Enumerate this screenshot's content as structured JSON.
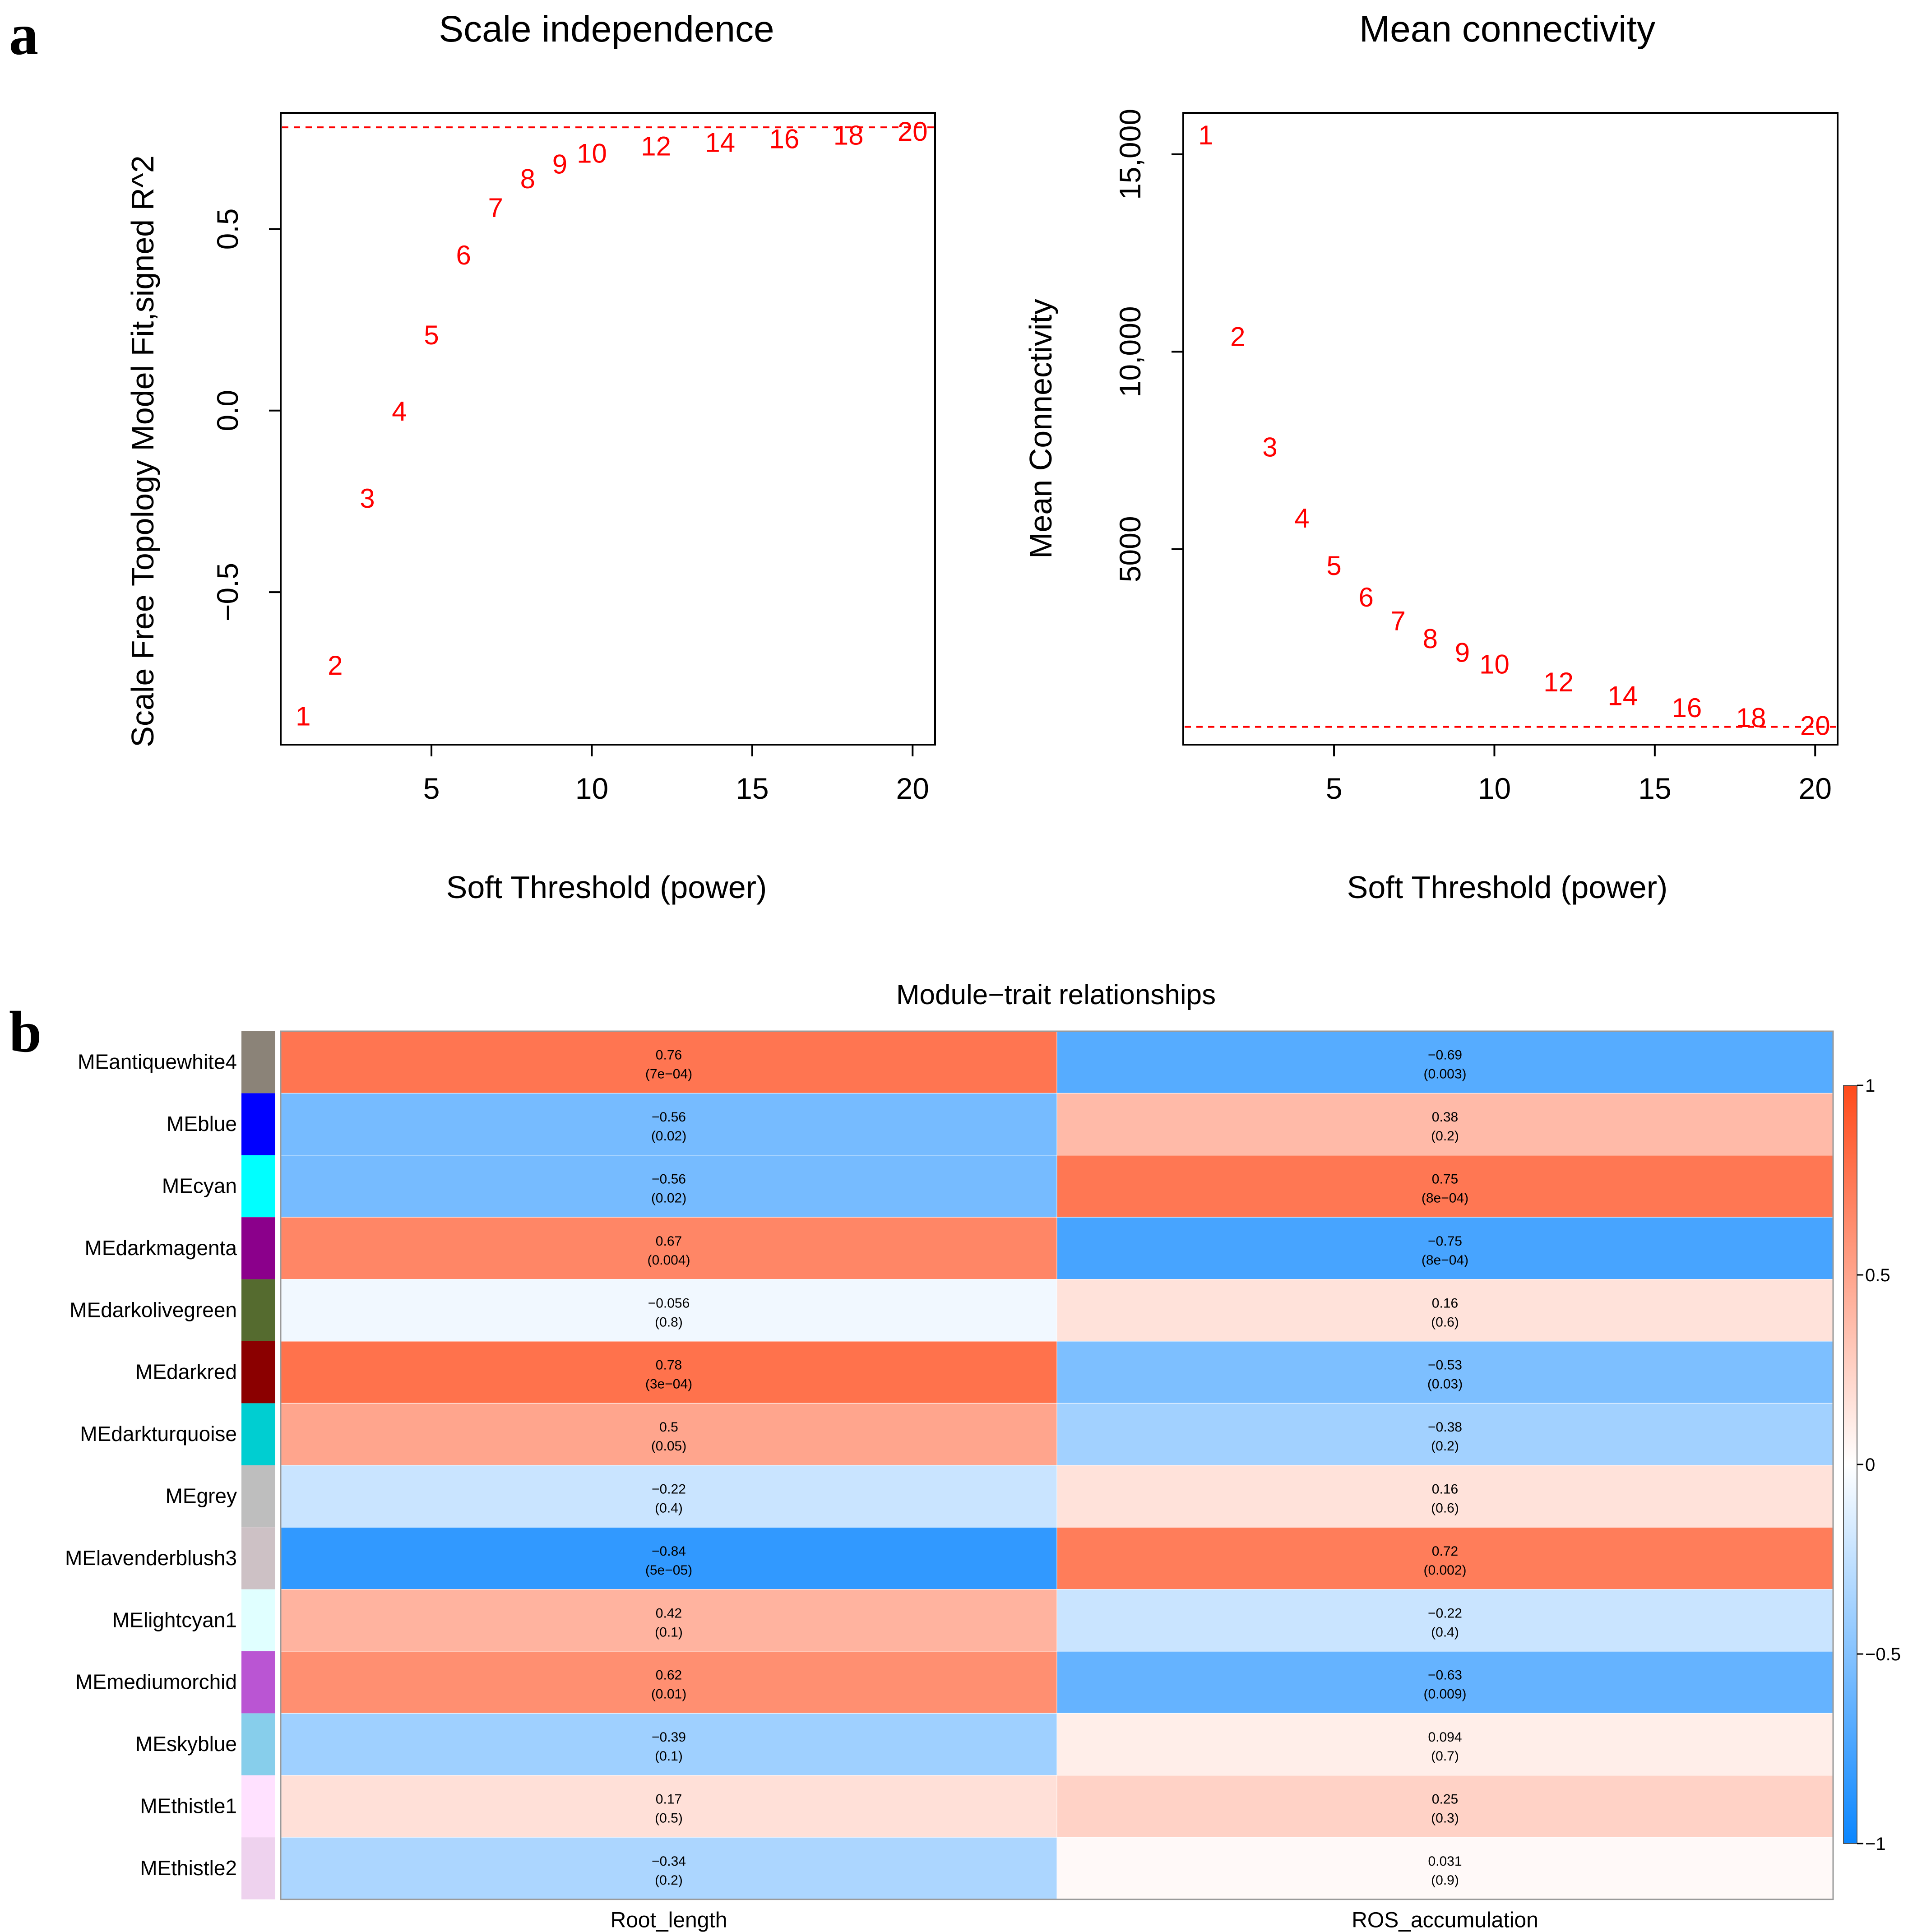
{
  "panels": {
    "a_label": "a",
    "b_label": "b"
  },
  "colors": {
    "point_text": "#ff0000",
    "threshold_line": "#ff0000",
    "axis": "#000000",
    "scale_low": "#0a86ff",
    "scale_mid": "#ffffff",
    "scale_high": "#ff4a1a"
  },
  "chart_data": [
    {
      "type": "scatter",
      "marker": "text-labels",
      "title": "Scale independence",
      "xlabel": "Soft Threshold (power)",
      "ylabel": "Scale Free Topology Model Fit,signed R^2",
      "xlim": [
        0.3,
        20.7
      ],
      "ylim": [
        -0.92,
        0.82
      ],
      "x_ticks": [
        5,
        10,
        15,
        20
      ],
      "x_tick_labels": [
        "5",
        "10",
        "15",
        "20"
      ],
      "y_ticks": [
        -0.5,
        0.0,
        0.5
      ],
      "y_tick_labels": [
        "−0.5",
        "0.0",
        "0.5"
      ],
      "threshold": 0.78,
      "points": [
        {
          "x": 1,
          "y": -0.84,
          "label": "1"
        },
        {
          "x": 2,
          "y": -0.7,
          "label": "2"
        },
        {
          "x": 3,
          "y": -0.24,
          "label": "3"
        },
        {
          "x": 4,
          "y": 0.0,
          "label": "4"
        },
        {
          "x": 5,
          "y": 0.21,
          "label": "5"
        },
        {
          "x": 6,
          "y": 0.43,
          "label": "6"
        },
        {
          "x": 7,
          "y": 0.56,
          "label": "7"
        },
        {
          "x": 8,
          "y": 0.64,
          "label": "8"
        },
        {
          "x": 9,
          "y": 0.68,
          "label": "9"
        },
        {
          "x": 10,
          "y": 0.71,
          "label": "10"
        },
        {
          "x": 12,
          "y": 0.73,
          "label": "12"
        },
        {
          "x": 14,
          "y": 0.74,
          "label": "14"
        },
        {
          "x": 16,
          "y": 0.75,
          "label": "16"
        },
        {
          "x": 18,
          "y": 0.76,
          "label": "18"
        },
        {
          "x": 20,
          "y": 0.77,
          "label": "20"
        }
      ]
    },
    {
      "type": "scatter",
      "marker": "text-labels",
      "title": "Mean connectivity",
      "xlabel": "Soft Threshold (power)",
      "ylabel": "Mean Connectivity",
      "xlim": [
        0.3,
        20.7
      ],
      "ylim": [
        50,
        16050
      ],
      "x_ticks": [
        5,
        10,
        15,
        20
      ],
      "x_tick_labels": [
        "5",
        "10",
        "15",
        "20"
      ],
      "y_ticks": [
        5000,
        10000,
        15000
      ],
      "y_tick_labels": [
        "5000",
        "10,000",
        "15,000"
      ],
      "threshold": 500,
      "points": [
        {
          "x": 1,
          "y": 15500,
          "label": "1"
        },
        {
          "x": 2,
          "y": 10400,
          "label": "2"
        },
        {
          "x": 3,
          "y": 7600,
          "label": "3"
        },
        {
          "x": 4,
          "y": 5800,
          "label": "4"
        },
        {
          "x": 5,
          "y": 4600,
          "label": "5"
        },
        {
          "x": 6,
          "y": 3800,
          "label": "6"
        },
        {
          "x": 7,
          "y": 3200,
          "label": "7"
        },
        {
          "x": 8,
          "y": 2750,
          "label": "8"
        },
        {
          "x": 9,
          "y": 2400,
          "label": "9"
        },
        {
          "x": 10,
          "y": 2100,
          "label": "10"
        },
        {
          "x": 12,
          "y": 1650,
          "label": "12"
        },
        {
          "x": 14,
          "y": 1300,
          "label": "14"
        },
        {
          "x": 16,
          "y": 1000,
          "label": "16"
        },
        {
          "x": 18,
          "y": 750,
          "label": "18"
        },
        {
          "x": 20,
          "y": 550,
          "label": "20"
        }
      ]
    },
    {
      "type": "heatmap",
      "title": "Module−trait relationships",
      "columns": [
        "Root_length",
        "ROS_accumulation"
      ],
      "rows": [
        {
          "name": "MEantiquewhite4",
          "swatch": "#8b8378",
          "values": [
            0.76,
            -0.69
          ],
          "labels": [
            "0.76",
            "−0.69"
          ],
          "pvalues": [
            "(7e−04)",
            "(0.003)"
          ]
        },
        {
          "name": "MEblue",
          "swatch": "#0000ff",
          "values": [
            -0.56,
            0.38
          ],
          "labels": [
            "−0.56",
            "0.38"
          ],
          "pvalues": [
            "(0.02)",
            "(0.2)"
          ]
        },
        {
          "name": "MEcyan",
          "swatch": "#00ffff",
          "values": [
            -0.56,
            0.75
          ],
          "labels": [
            "−0.56",
            "0.75"
          ],
          "pvalues": [
            "(0.02)",
            "(8e−04)"
          ]
        },
        {
          "name": "MEdarkmagenta",
          "swatch": "#8b008b",
          "values": [
            0.67,
            -0.75
          ],
          "labels": [
            "0.67",
            "−0.75"
          ],
          "pvalues": [
            "(0.004)",
            "(8e−04)"
          ]
        },
        {
          "name": "MEdarkolivegreen",
          "swatch": "#556b2f",
          "values": [
            -0.056,
            0.16
          ],
          "labels": [
            "−0.056",
            "0.16"
          ],
          "pvalues": [
            "(0.8)",
            "(0.6)"
          ]
        },
        {
          "name": "MEdarkred",
          "swatch": "#8b0000",
          "values": [
            0.78,
            -0.53
          ],
          "labels": [
            "0.78",
            "−0.53"
          ],
          "pvalues": [
            "(3e−04)",
            "(0.03)"
          ]
        },
        {
          "name": "MEdarkturquoise",
          "swatch": "#00ced1",
          "values": [
            0.5,
            -0.38
          ],
          "labels": [
            "0.5",
            "−0.38"
          ],
          "pvalues": [
            "(0.05)",
            "(0.2)"
          ]
        },
        {
          "name": "MEgrey",
          "swatch": "#bebebe",
          "values": [
            -0.22,
            0.16
          ],
          "labels": [
            "−0.22",
            "0.16"
          ],
          "pvalues": [
            "(0.4)",
            "(0.6)"
          ]
        },
        {
          "name": "MElavenderblush3",
          "swatch": "#cdc1c5",
          "values": [
            -0.84,
            0.72
          ],
          "labels": [
            "−0.84",
            "0.72"
          ],
          "pvalues": [
            "(5e−05)",
            "(0.002)"
          ]
        },
        {
          "name": "MElightcyan1",
          "swatch": "#e0ffff",
          "values": [
            0.42,
            -0.22
          ],
          "labels": [
            "0.42",
            "−0.22"
          ],
          "pvalues": [
            "(0.1)",
            "(0.4)"
          ]
        },
        {
          "name": "MEmediumorchid",
          "swatch": "#ba55d3",
          "values": [
            0.62,
            -0.63
          ],
          "labels": [
            "0.62",
            "−0.63"
          ],
          "pvalues": [
            "(0.01)",
            "(0.009)"
          ]
        },
        {
          "name": "MEskyblue",
          "swatch": "#87ceeb",
          "values": [
            -0.39,
            0.094
          ],
          "labels": [
            "−0.39",
            "0.094"
          ],
          "pvalues": [
            "(0.1)",
            "(0.7)"
          ]
        },
        {
          "name": "MEthistle1",
          "swatch": "#ffe1ff",
          "values": [
            0.17,
            0.25
          ],
          "labels": [
            "0.17",
            "0.25"
          ],
          "pvalues": [
            "(0.5)",
            "(0.3)"
          ]
        },
        {
          "name": "MEthistle2",
          "swatch": "#eed2ee",
          "values": [
            -0.34,
            0.031
          ],
          "labels": [
            "−0.34",
            "0.031"
          ],
          "pvalues": [
            "(0.2)",
            "(0.9)"
          ]
        }
      ],
      "color_scale": {
        "min": -1,
        "max": 1,
        "ticks": [
          1,
          0.5,
          0,
          -0.5,
          -1
        ],
        "tick_labels": [
          "1",
          "0.5",
          "0",
          "−0.5",
          "−1"
        ]
      }
    }
  ]
}
